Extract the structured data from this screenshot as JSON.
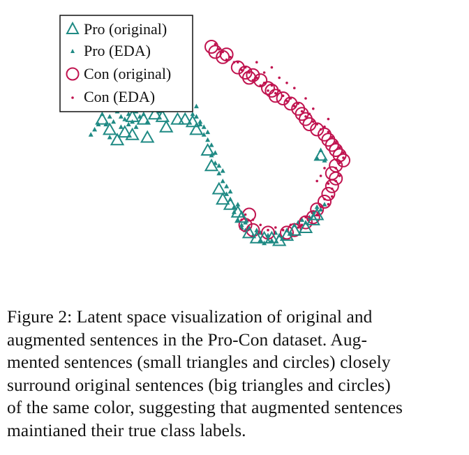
{
  "chart_data": {
    "type": "scatter",
    "title": "",
    "xlabel": "",
    "ylabel": "",
    "xlim": [
      0,
      100
    ],
    "ylim": [
      0,
      100
    ],
    "legend_position": "top-left",
    "colors": {
      "pro": "#1f8a84",
      "con": "#c0134f"
    },
    "legend": [
      {
        "label": "Pro (original)",
        "marker": "triangle-large",
        "color": "#1f8a84"
      },
      {
        "label": "Pro (EDA)",
        "marker": "triangle-small",
        "color": "#1f8a84"
      },
      {
        "label": "Con (original)",
        "marker": "circle-large",
        "color": "#c0134f"
      },
      {
        "label": "Con (EDA)",
        "marker": "circle-small",
        "color": "#c0134f"
      }
    ],
    "series": [
      {
        "name": "Pro (original)",
        "marker": "triangle-large",
        "points": [
          [
            16,
            62
          ],
          [
            18,
            58
          ],
          [
            20,
            54
          ],
          [
            22,
            57
          ],
          [
            24,
            56
          ],
          [
            24,
            63
          ],
          [
            27,
            62
          ],
          [
            28,
            55
          ],
          [
            30,
            64
          ],
          [
            32,
            63
          ],
          [
            33,
            59
          ],
          [
            36,
            62
          ],
          [
            38,
            62
          ],
          [
            40,
            61
          ],
          [
            41,
            58
          ],
          [
            44,
            50
          ],
          [
            45,
            44
          ],
          [
            47,
            35
          ],
          [
            48,
            31
          ],
          [
            50,
            29
          ],
          [
            52,
            26
          ],
          [
            53,
            24
          ],
          [
            55,
            18
          ],
          [
            57,
            16
          ],
          [
            59,
            16
          ],
          [
            61,
            16
          ],
          [
            63,
            15
          ],
          [
            65,
            17
          ],
          [
            67,
            19
          ],
          [
            70,
            20
          ],
          [
            72,
            23
          ],
          [
            73,
            25
          ],
          [
            74,
            48
          ]
        ]
      },
      {
        "name": "Pro (EDA)",
        "marker": "triangle-small",
        "points": [
          [
            13,
            56
          ],
          [
            14,
            58
          ],
          [
            15,
            60
          ],
          [
            16,
            64
          ],
          [
            17,
            60
          ],
          [
            17,
            66
          ],
          [
            18,
            63
          ],
          [
            18,
            55
          ],
          [
            19,
            61
          ],
          [
            19,
            67
          ],
          [
            20,
            65
          ],
          [
            21,
            63
          ],
          [
            21,
            59
          ],
          [
            22,
            62
          ],
          [
            22,
            66
          ],
          [
            23,
            64
          ],
          [
            23,
            60
          ],
          [
            24,
            61
          ],
          [
            24,
            67
          ],
          [
            25,
            65
          ],
          [
            25,
            59
          ],
          [
            26,
            63
          ],
          [
            26,
            67
          ],
          [
            27,
            69
          ],
          [
            27,
            64
          ],
          [
            28,
            66
          ],
          [
            28,
            70
          ],
          [
            28,
            61
          ],
          [
            29,
            68
          ],
          [
            29,
            72
          ],
          [
            30,
            70
          ],
          [
            30,
            66
          ],
          [
            31,
            68
          ],
          [
            31,
            65
          ],
          [
            32,
            67
          ],
          [
            33,
            68
          ],
          [
            34,
            66
          ],
          [
            34,
            69
          ],
          [
            35,
            68
          ],
          [
            36,
            67
          ],
          [
            36,
            70
          ],
          [
            37,
            68
          ],
          [
            38,
            69
          ],
          [
            39,
            67
          ],
          [
            39,
            66
          ],
          [
            40,
            64
          ],
          [
            41,
            67
          ],
          [
            41,
            63
          ],
          [
            42,
            61
          ],
          [
            42,
            60
          ],
          [
            43,
            59
          ],
          [
            43,
            56
          ],
          [
            44,
            57
          ],
          [
            44,
            54
          ],
          [
            45,
            52
          ],
          [
            45,
            48
          ],
          [
            46,
            49
          ],
          [
            46,
            45
          ],
          [
            47,
            44
          ],
          [
            47,
            41
          ],
          [
            48,
            38
          ],
          [
            48,
            42
          ],
          [
            49,
            36
          ],
          [
            49,
            33
          ],
          [
            50,
            34
          ],
          [
            50,
            31
          ],
          [
            51,
            28
          ],
          [
            51,
            26
          ],
          [
            52,
            29
          ],
          [
            52,
            23
          ],
          [
            53,
            21
          ],
          [
            53,
            20
          ],
          [
            54,
            22
          ],
          [
            54,
            19
          ],
          [
            55,
            20
          ],
          [
            56,
            17
          ],
          [
            57,
            19
          ],
          [
            58,
            18
          ],
          [
            58,
            15
          ],
          [
            59,
            14
          ],
          [
            60,
            17
          ],
          [
            61,
            15
          ],
          [
            62,
            18
          ],
          [
            63,
            17
          ],
          [
            64,
            16
          ],
          [
            65,
            19
          ],
          [
            66,
            18
          ],
          [
            67,
            21
          ],
          [
            68,
            22
          ],
          [
            69,
            23
          ],
          [
            70,
            22
          ],
          [
            71,
            24
          ],
          [
            72,
            26
          ],
          [
            73,
            28
          ],
          [
            74,
            27
          ],
          [
            75,
            29
          ],
          [
            74,
            50
          ],
          [
            73,
            47
          ],
          [
            75,
            46
          ]
        ]
      },
      {
        "name": "Con (original)",
        "marker": "circle-large",
        "points": [
          [
            45,
            90
          ],
          [
            46,
            88
          ],
          [
            48,
            86
          ],
          [
            49,
            87
          ],
          [
            52,
            82
          ],
          [
            54,
            80
          ],
          [
            55,
            78
          ],
          [
            56,
            79
          ],
          [
            58,
            77
          ],
          [
            60,
            74
          ],
          [
            61,
            73
          ],
          [
            62,
            71
          ],
          [
            64,
            70
          ],
          [
            66,
            68
          ],
          [
            68,
            66
          ],
          [
            69,
            64
          ],
          [
            70,
            62
          ],
          [
            71,
            60
          ],
          [
            73,
            58
          ],
          [
            75,
            56
          ],
          [
            76,
            54
          ],
          [
            77,
            52
          ],
          [
            78,
            50
          ],
          [
            79,
            48
          ],
          [
            80,
            46
          ],
          [
            78,
            44
          ],
          [
            77,
            41
          ],
          [
            78,
            39
          ],
          [
            77,
            36
          ],
          [
            76,
            33
          ],
          [
            75,
            30
          ],
          [
            73,
            27
          ],
          [
            72,
            24
          ],
          [
            70,
            22
          ],
          [
            67,
            19
          ],
          [
            65,
            18
          ],
          [
            55,
            25
          ],
          [
            54,
            21
          ],
          [
            56,
            19
          ],
          [
            60,
            18
          ]
        ]
      },
      {
        "name": "Con (EDA)",
        "marker": "circle-small",
        "points": [
          [
            46,
            91
          ],
          [
            47,
            89
          ],
          [
            48,
            88
          ],
          [
            49,
            85
          ],
          [
            50,
            86
          ],
          [
            51,
            84
          ],
          [
            52,
            84
          ],
          [
            53,
            81
          ],
          [
            54,
            82
          ],
          [
            55,
            80
          ],
          [
            56,
            77
          ],
          [
            57,
            78
          ],
          [
            58,
            75
          ],
          [
            59,
            76
          ],
          [
            60,
            73
          ],
          [
            61,
            75
          ],
          [
            62,
            72
          ],
          [
            63,
            73
          ],
          [
            64,
            71
          ],
          [
            65,
            69
          ],
          [
            66,
            70
          ],
          [
            67,
            67
          ],
          [
            68,
            68
          ],
          [
            69,
            65
          ],
          [
            70,
            63
          ],
          [
            71,
            64
          ],
          [
            72,
            61
          ],
          [
            73,
            60
          ],
          [
            74,
            58
          ],
          [
            75,
            59
          ],
          [
            76,
            57
          ],
          [
            77,
            55
          ],
          [
            78,
            53
          ],
          [
            79,
            51
          ],
          [
            80,
            49
          ],
          [
            80,
            47
          ],
          [
            79,
            45
          ],
          [
            78,
            43
          ],
          [
            79,
            40
          ],
          [
            78,
            38
          ],
          [
            77,
            35
          ],
          [
            76,
            37
          ],
          [
            77,
            32
          ],
          [
            76,
            29
          ],
          [
            75,
            31
          ],
          [
            74,
            28
          ],
          [
            73,
            25
          ],
          [
            72,
            26
          ],
          [
            71,
            23
          ],
          [
            70,
            24
          ],
          [
            69,
            21
          ],
          [
            68,
            20
          ],
          [
            66,
            21
          ],
          [
            64,
            19
          ],
          [
            62,
            20
          ],
          [
            60,
            19
          ],
          [
            58,
            21
          ],
          [
            56,
            23
          ],
          [
            54,
            25
          ],
          [
            53,
            23
          ],
          [
            74,
            40
          ],
          [
            75,
            43
          ],
          [
            73,
            38
          ],
          [
            65,
            76
          ],
          [
            63,
            78
          ],
          [
            67,
            74
          ],
          [
            59,
            80
          ],
          [
            61,
            82
          ],
          [
            57,
            84
          ],
          [
            70,
            70
          ],
          [
            72,
            66
          ],
          [
            76,
            62
          ]
        ]
      }
    ]
  },
  "caption": {
    "lines": [
      "Figure 2:  Latent space visualization of original and",
      "augmented sentences in the Pro-Con dataset.  Aug-",
      "mented sentences (small triangles and circles) closely",
      "surround original sentences (big triangles and circles)",
      "of the same color, suggesting that augmented sentences",
      "maintianed their true class labels."
    ]
  }
}
